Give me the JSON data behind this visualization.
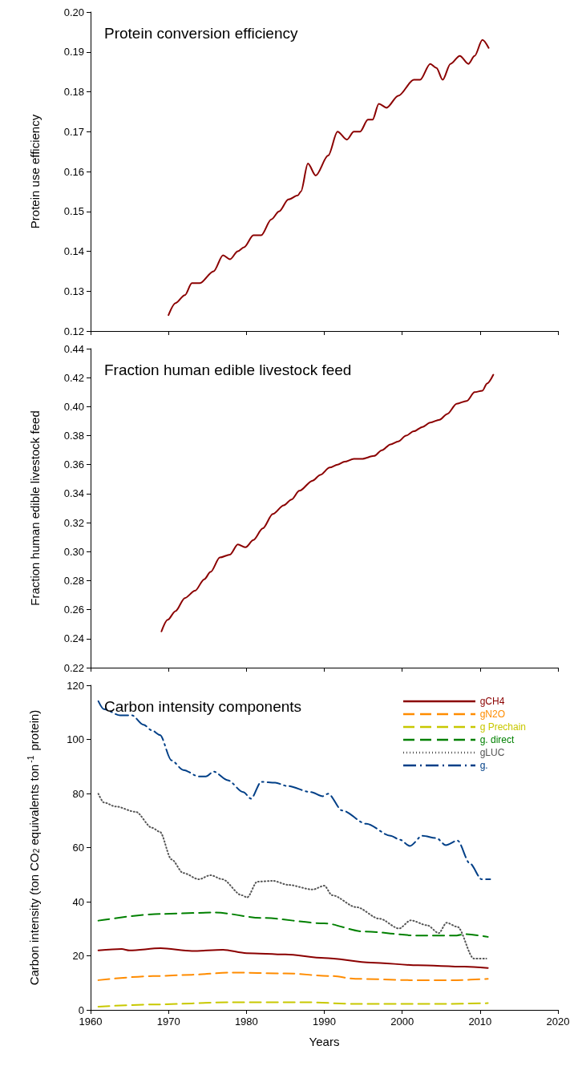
{
  "chart_data": [
    {
      "type": "line",
      "title": "Protein conversion efficiency",
      "ylabel": "Protein use efficiency",
      "xlim": [
        1960,
        2020
      ],
      "xticks": [
        1960,
        1970,
        1980,
        1990,
        2000,
        2010,
        2020
      ],
      "ylim": [
        0.12,
        0.2
      ],
      "yticks": [
        0.12,
        0.13,
        0.14,
        0.15,
        0.16,
        0.17,
        0.18,
        0.19,
        {
          "value": 0.2,
          "label": "0.20"
        }
      ],
      "tick_labels": "y",
      "grid": false,
      "marker": "none",
      "legend": false,
      "series": [
        {
          "color": "#8b0000",
          "line_style": "solid",
          "x": [
            1970,
            1970.9,
            1972.1,
            1973,
            1974,
            1975.8,
            1977,
            1977.9,
            1978.9,
            1979.7,
            1980.9,
            1981.9,
            1983.2,
            1984.2,
            1985.4,
            1986.6,
            1987,
            1987.9,
            1988.9,
            1990.5,
            1991.7,
            1992.9,
            1993.8,
            1994.6,
            1995.6,
            1996.2,
            1997,
            1998,
            1999.5,
            2001.5,
            2002.3,
            2003.6,
            2004.4,
            2005.2,
            2006.2,
            2007.4,
            2008.5,
            2009.3,
            2010.3,
            2011.1
          ],
          "values": [
            0.124,
            0.127,
            0.129,
            0.132,
            0.132,
            0.135,
            0.139,
            0.138,
            0.14,
            0.141,
            0.144,
            0.144,
            0.148,
            0.15,
            0.153,
            0.154,
            0.155,
            0.162,
            0.159,
            0.164,
            0.17,
            0.168,
            0.17,
            0.17,
            0.173,
            0.173,
            0.177,
            0.176,
            0.179,
            0.183,
            0.183,
            0.187,
            0.186,
            0.183,
            0.187,
            0.189,
            0.187,
            0.189,
            0.193,
            0.191
          ]
        }
      ]
    },
    {
      "type": "line",
      "title": "Fraction human edible livestock feed",
      "ylabel": "Fraction human edible livestock feed",
      "xlim": [
        1960,
        2020
      ],
      "xticks": [
        1960,
        1970,
        1980,
        1990,
        2000,
        2010,
        2020
      ],
      "ylim": [
        0.22,
        0.44
      ],
      "yticks": [
        0.22,
        0.24,
        0.26,
        0.28,
        {
          "value": 0.3,
          "label": "0.30"
        },
        0.32,
        0.34,
        0.36,
        0.38,
        {
          "value": 0.4,
          "label": "0.40"
        },
        0.42,
        0.44
      ],
      "tick_labels": "y",
      "grid": false,
      "marker": "none",
      "legend": false,
      "series": [
        {
          "color": "#8b0000",
          "line_style": "solid",
          "x": [
            1969.1,
            1969.9,
            1970.9,
            1972.1,
            1973.4,
            1974.6,
            1975.4,
            1976.6,
            1977.9,
            1978.9,
            1979.9,
            1980.9,
            1982.1,
            1983.4,
            1984.8,
            1985.8,
            1986.8,
            1988.5,
            1989.5,
            1990.7,
            1991.7,
            1992.6,
            1993.8,
            1994.8,
            1996.4,
            1997.4,
            1998.5,
            1999.5,
            2000.5,
            2001.5,
            2002.6,
            2003.6,
            2004.8,
            2005.8,
            2007,
            2008.3,
            2009.3,
            2010.3,
            2010.9,
            2011.7
          ],
          "values": [
            0.245,
            0.253,
            0.259,
            0.268,
            0.273,
            0.281,
            0.286,
            0.296,
            0.298,
            0.305,
            0.303,
            0.308,
            0.316,
            0.326,
            0.332,
            0.336,
            0.342,
            0.349,
            0.353,
            0.358,
            0.36,
            0.362,
            0.364,
            0.364,
            0.366,
            0.37,
            0.374,
            0.376,
            0.38,
            0.383,
            0.386,
            0.389,
            0.391,
            0.395,
            0.402,
            0.404,
            0.41,
            0.411,
            0.416,
            0.422
          ]
        }
      ]
    },
    {
      "type": "line",
      "title": "Carbon intensity components",
      "xlabel": "Years",
      "ylabel": "Carbon intensity (ton CO$_{2}$ equivalents ton$^{-1}$ protein)",
      "xlim": [
        1960,
        2020
      ],
      "xticks": [
        1960,
        1970,
        1980,
        1990,
        2000,
        2010,
        2020
      ],
      "ylim": [
        0,
        120
      ],
      "yticks": [
        0,
        20,
        40,
        60,
        80,
        100,
        120
      ],
      "grid": false,
      "marker": "none",
      "legend": "top right",
      "series": [
        {
          "name": "gCH4",
          "color": "#8b0000",
          "line_style": "solid",
          "x": [
            1961,
            1964,
            1965,
            1969,
            1973,
            1977,
            1980,
            1985,
            1990,
            1996,
            2002,
            2008,
            2011
          ],
          "values": [
            22,
            22.5,
            22,
            22.8,
            21.8,
            22.2,
            21,
            20.5,
            19.2,
            17.5,
            16.5,
            16,
            15.5
          ]
        },
        {
          "name": "gN2O",
          "color": "#ff8c00",
          "line_style": "dashed",
          "x": [
            1961,
            1968,
            1973,
            1978,
            1985,
            1991,
            1994,
            2001,
            2007,
            2011
          ],
          "values": [
            11,
            12.5,
            13,
            13.8,
            13.5,
            12.5,
            11.5,
            11,
            11,
            11.5
          ]
        },
        {
          "name": "g Prechain",
          "color": "#c8c800",
          "line_style": "dashed",
          "x": [
            1961,
            1968,
            1978,
            1988,
            1994,
            2005,
            2011
          ],
          "values": [
            1.2,
            2,
            2.8,
            2.8,
            2.2,
            2.2,
            2.5
          ]
        },
        {
          "name": "g. direct",
          "color": "#008000",
          "line_style": "dashed",
          "x": [
            1961,
            1969,
            1976,
            1982,
            1990,
            1995,
            2002,
            2007,
            2008,
            2011
          ],
          "values": [
            33,
            35.5,
            36,
            34,
            32,
            29,
            27.5,
            27.5,
            28,
            27
          ]
        },
        {
          "name": "gLUC",
          "color": "#555555",
          "line_style": "dotted",
          "x": [
            1961,
            1961.7,
            1963.2,
            1965.8,
            1967.9,
            1968.9,
            1970.4,
            1971.9,
            1973.9,
            1975.4,
            1976.9,
            1979.4,
            1980.1,
            1981.4,
            1983.4,
            1985.4,
            1988.5,
            1990,
            1991,
            1994.1,
            1997.1,
            1999.6,
            2001.1,
            2003.2,
            2004.7,
            2005.7,
            2007.1,
            2009.2,
            2010.8
          ],
          "values": [
            79.9,
            76.7,
            75.2,
            73.2,
            67.3,
            65.8,
            55.6,
            50.6,
            48.3,
            49.8,
            48.3,
            42.4,
            41.6,
            47.4,
            47.7,
            46.2,
            44.5,
            45.9,
            42.4,
            38,
            33.7,
            30.1,
            33.1,
            31.3,
            28.4,
            32.2,
            30.7,
            19,
            19
          ]
        },
        {
          "name": "g.",
          "color": "#003f87",
          "line_style": "dashdot",
          "x": [
            1961,
            1961.7,
            1963.8,
            1965.3,
            1966.8,
            1967.9,
            1968.9,
            1970.4,
            1971.9,
            1973.9,
            1974.8,
            1975.8,
            1977.6,
            1979.6,
            1980.6,
            1981.9,
            1983.7,
            1985.2,
            1988.3,
            1989.8,
            1990.5,
            1992.3,
            1995.4,
            1998.5,
            1999.7,
            2001,
            2002.6,
            2004.4,
            2005.6,
            2007.1,
            2008.7,
            2010.2,
            2011.3
          ],
          "values": [
            114.1,
            111.2,
            108.9,
            108.9,
            105.4,
            103.3,
            101.6,
            92.2,
            88.7,
            86.3,
            86.3,
            88.1,
            84.9,
            80.5,
            78.1,
            84.3,
            84,
            82.8,
            80.5,
            79,
            79.9,
            73.7,
            68.8,
            64.4,
            62.9,
            60.6,
            64.4,
            63.5,
            60.9,
            62.6,
            54.1,
            48.3,
            48.3
          ]
        }
      ]
    }
  ]
}
